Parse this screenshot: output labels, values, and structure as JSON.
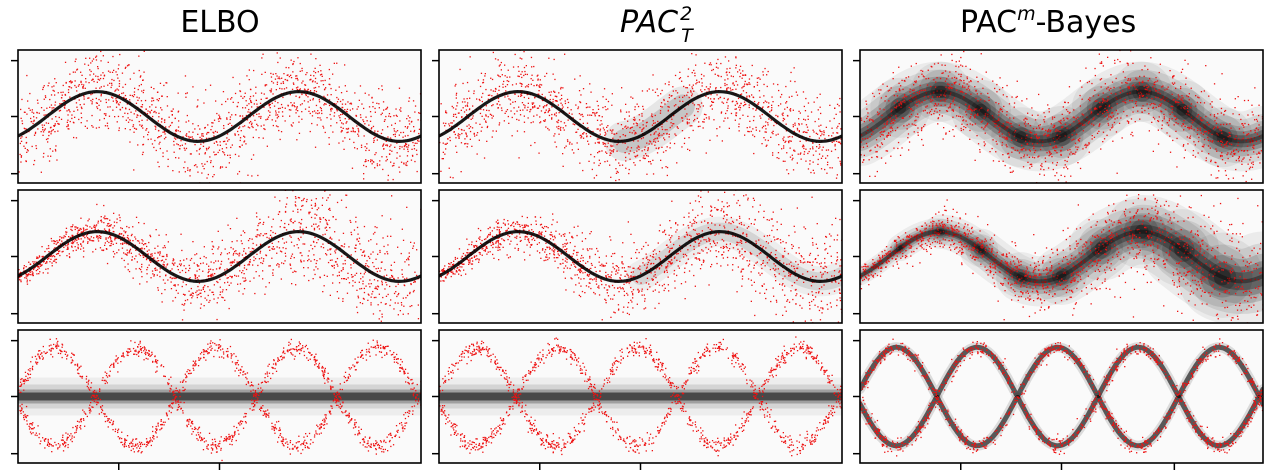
{
  "figure": {
    "column_titles": [
      {
        "text": "ELBO",
        "italic": false
      },
      {
        "text": "PAC",
        "italic": true,
        "superscript": "2",
        "subscript": "T"
      },
      {
        "text": "PAC",
        "italic": false,
        "superscript": "m",
        "suffix": "-Bayes"
      }
    ]
  },
  "colors": {
    "background": "#ffffff",
    "frame": "#000000",
    "observations": "#ee1111",
    "density": "#000000"
  },
  "chart_data": [
    {
      "type": "scatter",
      "row": 0,
      "col": 0,
      "method": "ELBO",
      "task": "sinusoid-homoscedastic",
      "series": [
        {
          "name": "",
          "function": "sin",
          "noise": "homoscedastic",
          "predictive_spread": "narrow",
          "failure_region": "none"
        }
      ],
      "grid": false,
      "legend": "none"
    },
    {
      "type": "scatter",
      "row": 0,
      "col": 1,
      "method": "PAC_T^2",
      "task": "sinusoid-homoscedastic",
      "series": [
        {
          "name": "",
          "function": "sin",
          "noise": "homoscedastic",
          "predictive_spread": "narrow",
          "failure_region": "center"
        }
      ],
      "grid": false,
      "legend": "none"
    },
    {
      "type": "scatter",
      "row": 0,
      "col": 2,
      "method": "PAC^m-Bayes",
      "task": "sinusoid-homoscedastic",
      "series": [
        {
          "name": "",
          "function": "sin",
          "noise": "homoscedastic",
          "predictive_spread": "matches-noise"
        }
      ],
      "grid": false,
      "legend": "none"
    },
    {
      "type": "scatter",
      "row": 1,
      "col": 0,
      "method": "ELBO",
      "task": "sinusoid-heteroscedastic",
      "series": [
        {
          "name": "",
          "function": "sin",
          "noise": "increasing",
          "predictive_spread": "narrow"
        }
      ],
      "grid": false,
      "legend": "none"
    },
    {
      "type": "scatter",
      "row": 1,
      "col": 1,
      "method": "PAC_T^2",
      "task": "sinusoid-heteroscedastic",
      "series": [
        {
          "name": "",
          "function": "sin",
          "noise": "increasing",
          "predictive_spread": "slightly-increasing"
        }
      ],
      "grid": false,
      "legend": "none"
    },
    {
      "type": "scatter",
      "row": 1,
      "col": 2,
      "method": "PAC^m-Bayes",
      "task": "sinusoid-heteroscedastic",
      "series": [
        {
          "name": "",
          "function": "sin",
          "noise": "increasing",
          "predictive_spread": "matches-noise"
        }
      ],
      "grid": false,
      "legend": "none"
    },
    {
      "type": "scatter",
      "row": 2,
      "col": 0,
      "method": "ELBO",
      "task": "bimodal",
      "series": [
        {
          "name": "",
          "function": "+/- sin",
          "noise": "small",
          "predictive_spread": "unimodal-at-zero"
        }
      ],
      "grid": false,
      "legend": "none"
    },
    {
      "type": "scatter",
      "row": 2,
      "col": 1,
      "method": "PAC_T^2",
      "task": "bimodal",
      "series": [
        {
          "name": "",
          "function": "+/- sin",
          "noise": "small",
          "predictive_spread": "unimodal-at-zero"
        }
      ],
      "grid": false,
      "legend": "none"
    },
    {
      "type": "scatter",
      "row": 2,
      "col": 2,
      "method": "PAC^m-Bayes",
      "task": "bimodal",
      "series": [
        {
          "name": "",
          "function": "+/- sin",
          "noise": "small",
          "predictive_spread": "bimodal"
        }
      ],
      "grid": false,
      "legend": "none"
    }
  ]
}
